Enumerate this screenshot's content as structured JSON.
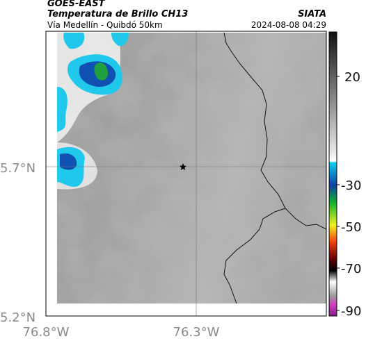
{
  "header": {
    "satellite": "GOES-EAST",
    "product": "Temperatura de Brillo CH13",
    "source": "SIATA",
    "region": "Vía Medellín - Quibdó 50km",
    "datetime": "2024-08-08 04:29"
  },
  "map": {
    "lat_labels": [
      "5.7°N",
      "5.2°N"
    ],
    "lon_labels": [
      "76.8°W",
      "76.3°W"
    ]
  },
  "colorbar": {
    "ticks": [
      "20",
      "-30",
      "-50",
      "-70",
      "-90"
    ]
  }
}
